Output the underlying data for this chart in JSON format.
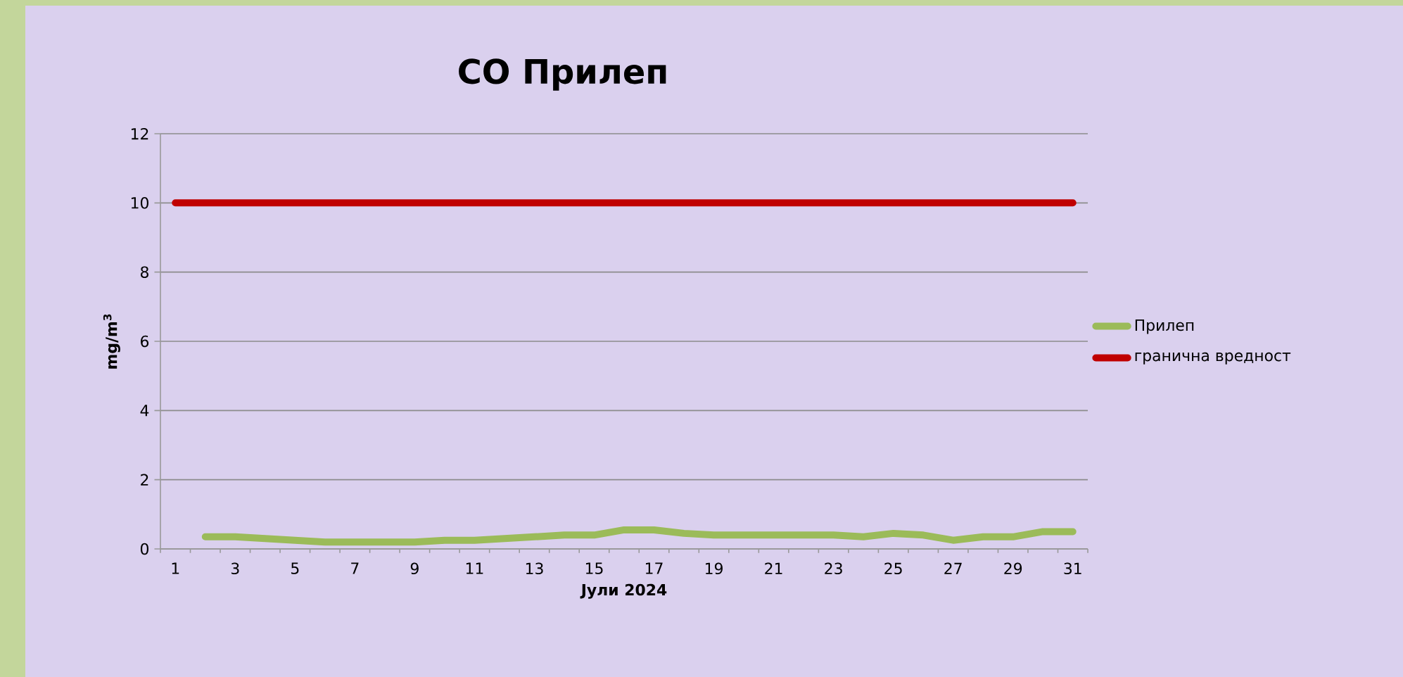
{
  "chart_data": {
    "type": "line",
    "title": "CO Прилеп",
    "xlabel": "Јули 2024",
    "ylabel": "mg/m$^{3}$",
    "categories": [
      "1",
      null,
      "3",
      null,
      "5",
      null,
      "7",
      null,
      "9",
      null,
      "11",
      null,
      "13",
      null,
      "15",
      null,
      "17",
      null,
      "19",
      null,
      "21",
      null,
      "23",
      null,
      "25",
      null,
      "27",
      null,
      "29",
      null,
      "31"
    ],
    "series": [
      {
        "name": "Прилеп",
        "color": "#9bbb59",
        "values": [
          null,
          0.35,
          0.35,
          0.3,
          0.25,
          0.2,
          0.2,
          0.2,
          0.2,
          0.25,
          0.25,
          0.3,
          0.35,
          0.4,
          0.4,
          0.55,
          0.55,
          0.45,
          0.4,
          0.4,
          0.4,
          0.4,
          0.4,
          0.35,
          0.45,
          0.4,
          0.25,
          0.35,
          0.35,
          0.5,
          0.5
        ]
      },
      {
        "name": "гранична вредност",
        "color": "#c00000",
        "values": [
          10,
          10,
          10,
          10,
          10,
          10,
          10,
          10,
          10,
          10,
          10,
          10,
          10,
          10,
          10,
          10,
          10,
          10,
          10,
          10,
          10,
          10,
          10,
          10,
          10,
          10,
          10,
          10,
          10,
          10,
          10
        ]
      }
    ],
    "ylim": [
      0,
      12
    ],
    "yticks": [
      0,
      2,
      4,
      6,
      8,
      10,
      12
    ],
    "grid": "y",
    "legend": "right",
    "marker": "none",
    "line_style": "solid"
  }
}
